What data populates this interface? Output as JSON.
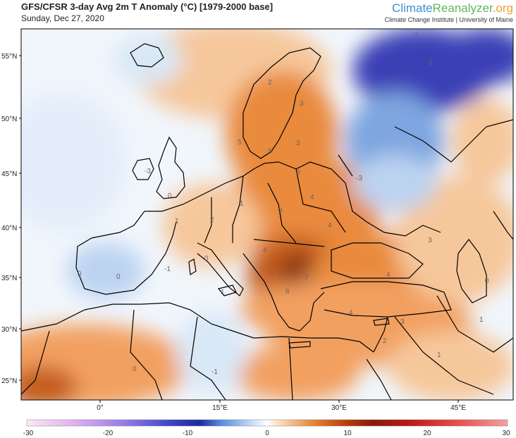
{
  "header": {
    "title": "GFS/CFSR 3-day Avg 2m T Anomaly (°C) [1979-2000 base]",
    "date": "Sunday, Dec 27, 2020",
    "brand_part1": "Climate",
    "brand_part2": "Reanalyzer",
    "brand_part3": ".org",
    "brand_sub": "Climate Change Institute | University of Maine"
  },
  "map": {
    "lat_labels": [
      "55°N",
      "50°N",
      "45°N",
      "40°N",
      "35°N",
      "30°N",
      "25°N"
    ],
    "lon_labels": [
      "0°",
      "15°E",
      "30°E",
      "45°E"
    ],
    "colors": {
      "deep_cold": "#3a3fb5",
      "cold": "#7fa6e0",
      "cool": "#d9e8f7",
      "neutral": "#ffffff",
      "warm": "#f7c79a",
      "warmer": "#e98a3c",
      "hot": "#c45d1f",
      "hottest": "#8a3515",
      "border": "#000000"
    }
  },
  "contour_labels": [
    {
      "text": "7"
    },
    {
      "text": "-3"
    },
    {
      "text": "2"
    },
    {
      "text": "3"
    },
    {
      "text": "5"
    },
    {
      "text": "5"
    },
    {
      "text": "3"
    },
    {
      "text": "3"
    },
    {
      "text": "-3"
    },
    {
      "text": "0"
    },
    {
      "text": "1"
    },
    {
      "text": "2"
    },
    {
      "text": "1"
    },
    {
      "text": "3"
    },
    {
      "text": "4"
    },
    {
      "text": "4"
    },
    {
      "text": "7"
    },
    {
      "text": "6"
    },
    {
      "text": "6"
    },
    {
      "text": "4"
    },
    {
      "text": "4"
    },
    {
      "text": "3"
    },
    {
      "text": "0"
    },
    {
      "text": "0"
    },
    {
      "text": "-1"
    },
    {
      "text": "0"
    },
    {
      "text": "1"
    },
    {
      "text": "-1"
    },
    {
      "text": "0"
    },
    {
      "text": "2"
    },
    {
      "text": "1"
    },
    {
      "text": "1"
    },
    {
      "text": "3"
    },
    {
      "text": "0"
    },
    {
      "text": "-3"
    },
    {
      "text": "4"
    }
  ],
  "colorbar": {
    "ticks": [
      "-30",
      "-20",
      "-10",
      "0",
      "10",
      "20",
      "30"
    ]
  }
}
